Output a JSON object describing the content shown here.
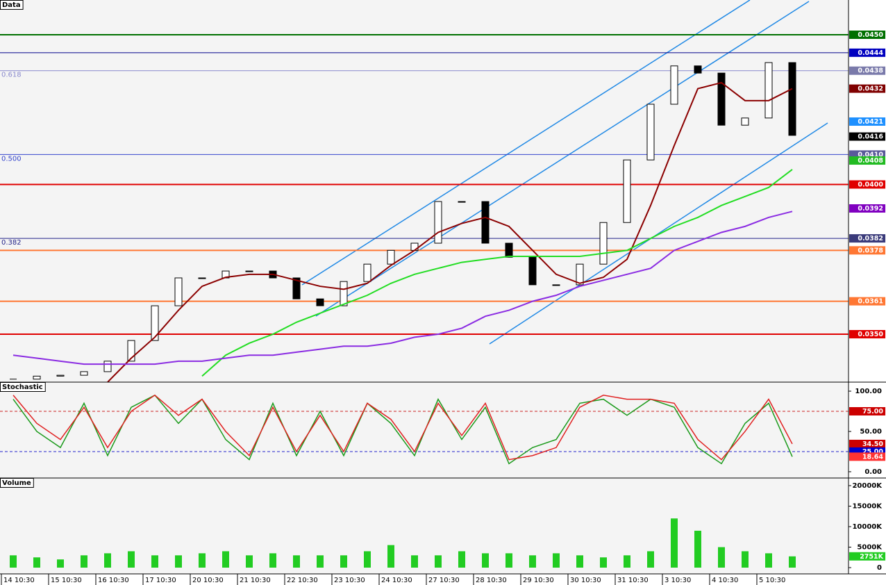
{
  "chart_data": [
    {
      "type": "candlestick",
      "title": "Data",
      "values": [
        0.0335,
        0.0336,
        0.03363,
        0.03375,
        0.0341,
        0.03479,
        0.03595,
        0.03688,
        0.03688,
        0.03711,
        0.03711,
        0.03688,
        0.03618,
        0.03595,
        0.03676,
        0.03734,
        0.0378,
        0.03804,
        0.03943,
        0.03943,
        0.03804,
        0.03757,
        0.03665,
        0.03665,
        0.03734,
        0.03873,
        0.04082,
        0.04268,
        0.04396,
        0.04372,
        0.04198,
        0.04222,
        0.04407,
        0.04164
      ],
      "overlays": [
        {
          "color": "#8b0000",
          "values": [
            null,
            null,
            null,
            null,
            0.0334,
            0.0342,
            0.0349,
            0.0358,
            0.0366,
            0.0369,
            0.037,
            0.037,
            0.0368,
            0.0366,
            0.0365,
            0.0367,
            0.0373,
            0.0378,
            0.0384,
            0.0387,
            0.0389,
            0.0386,
            0.0378,
            0.037,
            0.0367,
            0.0369,
            0.0375,
            0.0393,
            0.0413,
            0.0432,
            0.0434,
            0.0428,
            0.0428,
            0.0432
          ]
        },
        {
          "color": "#22dd22",
          "values": [
            null,
            null,
            null,
            null,
            null,
            null,
            null,
            null,
            0.0336,
            0.0343,
            0.0347,
            0.035,
            0.0354,
            0.0357,
            0.036,
            0.0363,
            0.0367,
            0.037,
            0.0372,
            0.0374,
            0.0375,
            0.0376,
            0.0376,
            0.0376,
            0.0376,
            0.0377,
            0.0378,
            0.0382,
            0.0386,
            0.0389,
            0.0393,
            0.0396,
            0.0399,
            0.0405
          ]
        },
        {
          "color": "#8a2be2",
          "values": [
            0.0343,
            0.0342,
            0.0341,
            0.034,
            0.034,
            0.034,
            0.034,
            0.0341,
            0.0341,
            0.0342,
            0.0343,
            0.0343,
            0.0344,
            0.0345,
            0.0346,
            0.0346,
            0.0347,
            0.0349,
            0.035,
            0.0352,
            0.0356,
            0.0358,
            0.0361,
            0.0363,
            0.0366,
            0.0368,
            0.037,
            0.0372,
            0.0378,
            0.0381,
            0.0384,
            0.0386,
            0.0389,
            0.0391
          ]
        }
      ],
      "levels": [
        {
          "value": 0.045,
          "color": "#007000",
          "width": 2
        },
        {
          "value": 0.0444,
          "color": "#00008b",
          "width": 1
        },
        {
          "value": 0.0438,
          "color": "#8888cc",
          "width": 1,
          "label": "0.618"
        },
        {
          "value": 0.041,
          "color": "#3344cc",
          "width": 1,
          "label": "0.500"
        },
        {
          "value": 0.0382,
          "color": "#222288",
          "width": 1,
          "label": "0.382"
        },
        {
          "value": 0.04,
          "color": "#e00000",
          "width": 2
        },
        {
          "value": 0.0378,
          "color": "#ff7733",
          "width": 2
        },
        {
          "value": 0.0361,
          "color": "#ff7733",
          "width": 2
        },
        {
          "value": 0.035,
          "color": "#e00000",
          "width": 2
        }
      ],
      "tags": [
        {
          "value": 0.045,
          "label": "0.0450",
          "color": "#007000"
        },
        {
          "value": 0.0444,
          "label": "0.0444",
          "color": "#0000c0"
        },
        {
          "value": 0.0438,
          "label": "0.0438",
          "color": "#7a7aaa"
        },
        {
          "value": 0.0432,
          "label": "0.0432",
          "color": "#800000"
        },
        {
          "value": 0.0421,
          "label": "0.0421",
          "color": "#1e90ff"
        },
        {
          "value": 0.0416,
          "label": "0.0416",
          "color": "#000000"
        },
        {
          "value": 0.041,
          "label": "0.0410",
          "color": "#5a5a9a"
        },
        {
          "value": 0.0408,
          "label": "0.0408",
          "color": "#22bb22"
        },
        {
          "value": 0.04,
          "label": "0.0400",
          "color": "#e00000"
        },
        {
          "value": 0.0392,
          "label": "0.0392",
          "color": "#8000c0"
        },
        {
          "value": 0.0382,
          "label": "0.0382",
          "color": "#3a3a7a"
        },
        {
          "value": 0.0378,
          "label": "0.0378",
          "color": "#ff7733"
        },
        {
          "value": 0.0361,
          "label": "0.0361",
          "color": "#ff7733"
        },
        {
          "value": 0.035,
          "label": "0.0350",
          "color": "#e00000"
        }
      ],
      "ylim": [
        0.0334,
        0.04616
      ]
    },
    {
      "type": "line",
      "title": "Stochastic",
      "series": [
        {
          "color": "#1a9a1a",
          "values": [
            90,
            50,
            30,
            85,
            20,
            80,
            95,
            60,
            90,
            40,
            15,
            85,
            20,
            75,
            20,
            85,
            60,
            20,
            90,
            40,
            80,
            10,
            30,
            40,
            85,
            90,
            70,
            90,
            80,
            30,
            10,
            60,
            85,
            18.64
          ]
        },
        {
          "color": "#e02020",
          "values": [
            95,
            60,
            40,
            80,
            30,
            75,
            95,
            70,
            90,
            50,
            20,
            80,
            25,
            70,
            25,
            85,
            65,
            25,
            85,
            45,
            85,
            15,
            20,
            30,
            80,
            95,
            90,
            90,
            85,
            40,
            15,
            50,
            90,
            34.5
          ]
        }
      ],
      "levels": [
        {
          "value": 75,
          "color": "#cc2222"
        },
        {
          "value": 25,
          "color": "#2222cc"
        }
      ],
      "tags": [
        {
          "value": 75,
          "label": "75.00",
          "color": "#cc0000"
        },
        {
          "value": 34.5,
          "label": "34.50",
          "color": "#cc0000"
        },
        {
          "value": 25,
          "label": "25.00",
          "color": "#0000cc"
        },
        {
          "value": 18.64,
          "label": "18.64",
          "color": "#ff3333"
        }
      ],
      "ylim": [
        -7.8,
        111.2
      ],
      "yticks": [
        {
          "value": 0,
          "label": "0.00"
        },
        {
          "value": 50,
          "label": "50.00"
        },
        {
          "value": 100,
          "label": "100.00"
        }
      ]
    },
    {
      "type": "bar",
      "title": "Volume",
      "color": "#22cc22",
      "categories": [
        "14 10:30",
        null,
        "15 10:30",
        null,
        "16 10:30",
        null,
        "17 10:30",
        null,
        "20 10:30",
        null,
        "21 10:30",
        null,
        "22 10:30",
        null,
        "23 10:30",
        null,
        "24 10:30",
        null,
        "27 10:30",
        null,
        "28 10:30",
        null,
        "29 10:30",
        null,
        "30 10:30",
        null,
        "31 10:30",
        null,
        "3 10:30",
        null,
        "4 10:30",
        null,
        "5 10:30",
        null
      ],
      "values": [
        3000,
        2500,
        2000,
        3000,
        3500,
        4000,
        3000,
        3000,
        3500,
        4000,
        3000,
        3500,
        3000,
        3000,
        3000,
        4000,
        5500,
        3000,
        3000,
        4000,
        3500,
        3500,
        3000,
        3500,
        3000,
        2500,
        3000,
        4000,
        12000,
        9000,
        5000,
        4000,
        3500,
        2751
      ],
      "tags": [
        {
          "value": 2751,
          "label": "2751K",
          "color": "#22cc22"
        }
      ],
      "ylim": [
        -1525,
        21864
      ],
      "yticks": [
        {
          "value": 0,
          "label": "0"
        },
        {
          "value": 5000,
          "label": "5000K"
        },
        {
          "value": 10000,
          "label": "10000K"
        },
        {
          "value": 15000,
          "label": "15000K"
        },
        {
          "value": 20000,
          "label": "20000K"
        }
      ]
    }
  ]
}
